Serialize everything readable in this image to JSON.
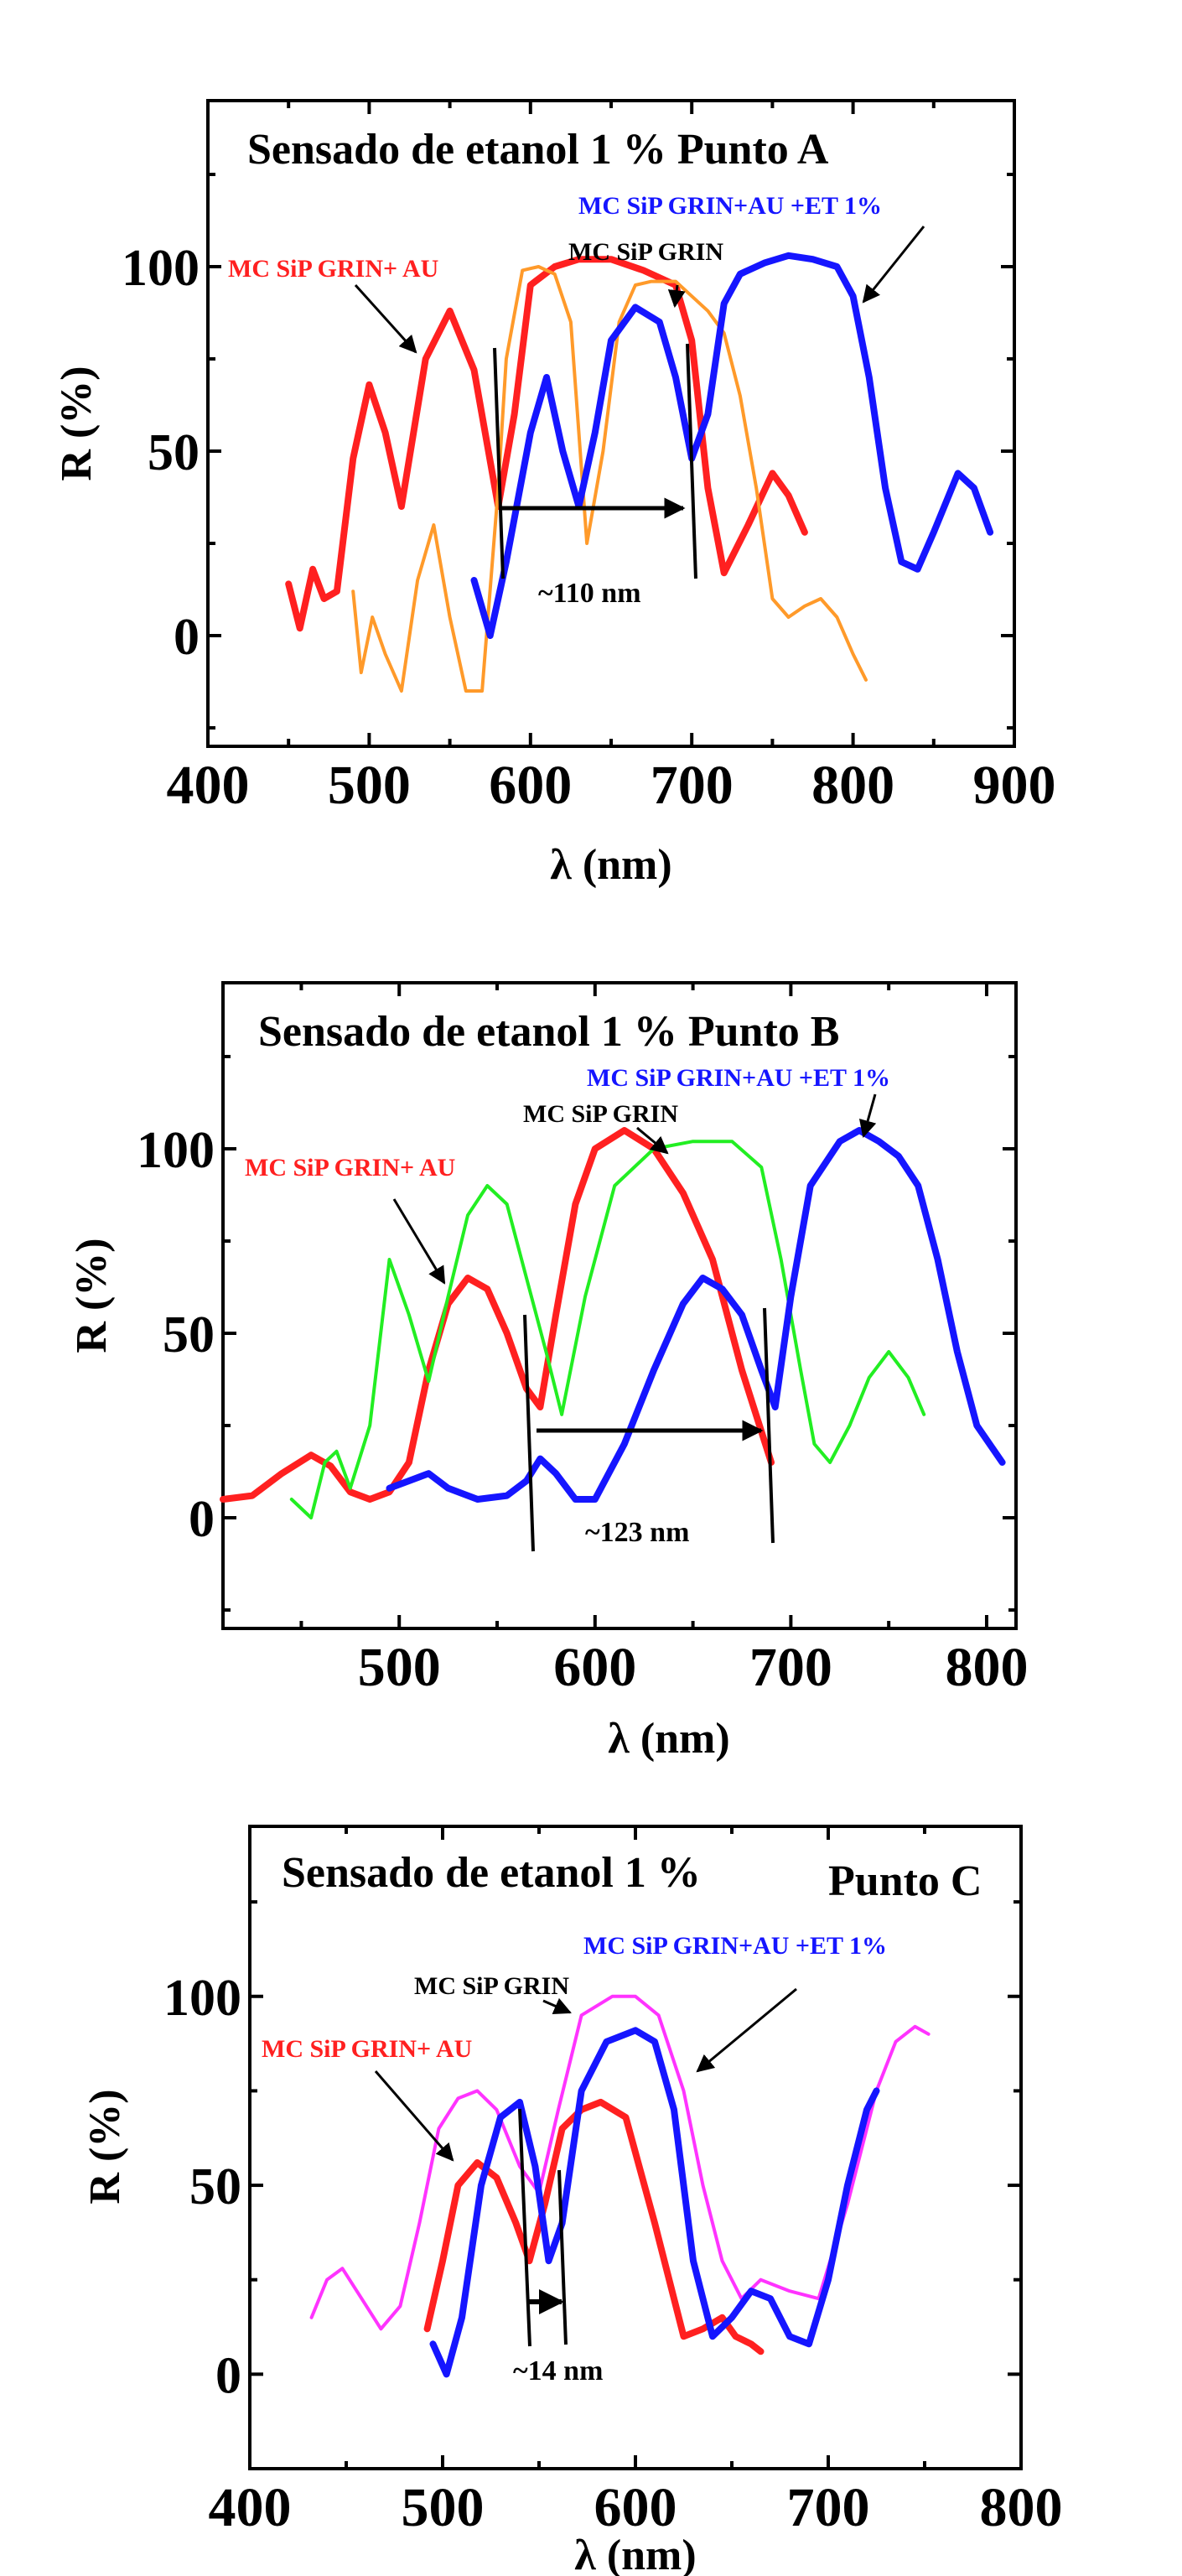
{
  "chart_data": [
    {
      "type": "line",
      "title": "Sensado de etanol 1 % Punto A",
      "xlabel": "λ (nm)",
      "ylabel": "R (%)",
      "xlim": [
        400,
        900
      ],
      "ylim": [
        -30,
        145
      ],
      "xticks": [
        400,
        500,
        600,
        700,
        800,
        900
      ],
      "yticks": [
        0,
        50,
        100
      ],
      "colors": {
        "red": "#ff2020",
        "orange": "#ff9a2a",
        "blue": "#1515ff",
        "black": "#000000"
      },
      "series": [
        {
          "name": "MC SiP GRIN+ AU",
          "color": "#ff2020",
          "x": [
            450,
            457,
            465,
            472,
            480,
            490,
            500,
            510,
            520,
            535,
            550,
            565,
            580,
            590,
            600,
            615,
            630,
            650,
            670,
            690,
            700,
            710,
            720,
            735,
            750,
            760,
            770
          ],
          "y": [
            14,
            2,
            18,
            10,
            12,
            48,
            68,
            55,
            35,
            75,
            88,
            72,
            35,
            60,
            95,
            100,
            102,
            102,
            99,
            95,
            80,
            40,
            17,
            30,
            44,
            38,
            28
          ]
        },
        {
          "name": "MC SiP GRIN",
          "color": "#ff9a2a",
          "x": [
            490,
            495,
            502,
            510,
            520,
            530,
            540,
            550,
            560,
            570,
            580,
            585,
            595,
            605,
            615,
            625,
            635,
            645,
            655,
            665,
            675,
            690,
            700,
            710,
            720,
            730,
            740,
            750,
            760,
            770,
            780,
            790,
            800,
            808
          ],
          "y": [
            12,
            -10,
            5,
            -5,
            -15,
            15,
            30,
            5,
            -15,
            -15,
            40,
            75,
            99,
            100,
            98,
            85,
            25,
            50,
            85,
            95,
            96,
            96,
            92,
            88,
            82,
            65,
            40,
            10,
            5,
            8,
            10,
            5,
            -5,
            -12
          ]
        },
        {
          "name": "MC SiP GRIN+ AU +ET 1%",
          "color": "#1515ff",
          "x": [
            565,
            575,
            585,
            600,
            610,
            620,
            630,
            640,
            650,
            665,
            680,
            690,
            700,
            710,
            720,
            730,
            745,
            760,
            775,
            790,
            800,
            810,
            820,
            830,
            840,
            850,
            865,
            875,
            885
          ],
          "y": [
            15,
            0,
            20,
            55,
            70,
            50,
            35,
            55,
            80,
            89,
            85,
            70,
            48,
            60,
            90,
            98,
            101,
            103,
            102,
            100,
            92,
            70,
            40,
            20,
            18,
            28,
            44,
            40,
            28
          ]
        }
      ],
      "annotations": [
        {
          "text": "MC SiP GRIN+ AU",
          "color": "#ff2020"
        },
        {
          "text": "MC SiP GRIN",
          "color": "#000000"
        },
        {
          "text": "MC SiP  GRIN+AU +ET  1%",
          "color": "#1515ff"
        },
        {
          "text": "~110 nm",
          "color": "#000000"
        }
      ]
    },
    {
      "type": "line",
      "title": "Sensado de etanol 1 %  Punto B",
      "xlabel": "λ (nm)",
      "ylabel": "R (%)",
      "xlim": [
        410,
        815
      ],
      "ylim": [
        -30,
        145
      ],
      "xticks": [
        500,
        600,
        700,
        800
      ],
      "yticks": [
        0,
        50,
        100
      ],
      "colors": {
        "red": "#ff2020",
        "green": "#22ee22",
        "blue": "#1515ff",
        "black": "#000000"
      },
      "series": [
        {
          "name": "MC SiP GRIN+ AU",
          "color": "#ff2020",
          "x": [
            410,
            425,
            440,
            455,
            465,
            475,
            485,
            495,
            505,
            515,
            525,
            535,
            545,
            555,
            565,
            572,
            580,
            590,
            600,
            615,
            630,
            645,
            660,
            675,
            690
          ],
          "y": [
            5,
            6,
            12,
            17,
            14,
            7,
            5,
            7,
            15,
            40,
            58,
            65,
            62,
            50,
            35,
            30,
            55,
            85,
            100,
            105,
            100,
            88,
            70,
            40,
            15
          ]
        },
        {
          "name": "MC SiP GRIN",
          "color": "#22ee22",
          "x": [
            445,
            455,
            462,
            468,
            475,
            485,
            495,
            505,
            515,
            525,
            535,
            545,
            555,
            565,
            575,
            583,
            595,
            610,
            630,
            650,
            670,
            685,
            695,
            705,
            712,
            720,
            730,
            740,
            750,
            760,
            768
          ],
          "y": [
            5,
            0,
            15,
            18,
            8,
            25,
            70,
            55,
            37,
            60,
            82,
            90,
            85,
            65,
            45,
            28,
            60,
            90,
            100,
            102,
            102,
            95,
            70,
            40,
            20,
            15,
            25,
            38,
            45,
            38,
            28
          ]
        },
        {
          "name": "MC SiP  GRIN+AU +ET  1%",
          "color": "#1515ff",
          "x": [
            495,
            505,
            515,
            525,
            540,
            555,
            565,
            572,
            580,
            590,
            600,
            615,
            630,
            645,
            655,
            665,
            675,
            685,
            692,
            700,
            710,
            725,
            735,
            745,
            755,
            765,
            775,
            785,
            795,
            808
          ],
          "y": [
            8,
            10,
            12,
            8,
            5,
            6,
            10,
            16,
            12,
            5,
            5,
            20,
            40,
            58,
            65,
            62,
            55,
            40,
            30,
            60,
            90,
            102,
            105,
            102,
            98,
            90,
            70,
            45,
            25,
            15
          ]
        }
      ],
      "annotations": [
        {
          "text": "MC SiP GRIN+ AU",
          "color": "#ff2020"
        },
        {
          "text": "MC SiP GRIN",
          "color": "#000000"
        },
        {
          "text": "MC SiP  GRIN+AU +ET  1%",
          "color": "#1515ff"
        },
        {
          "text": "~123 nm",
          "color": "#000000"
        }
      ]
    },
    {
      "type": "line",
      "title": "Sensado de etanol 1 %",
      "subtitle": "Punto C",
      "xlabel": "λ (nm)",
      "ylabel": "R (%)",
      "xlim": [
        400,
        800
      ],
      "ylim": [
        -25,
        145
      ],
      "xticks": [
        400,
        500,
        600,
        700,
        800
      ],
      "yticks": [
        0,
        50,
        100
      ],
      "colors": {
        "red": "#ff2020",
        "magenta": "#ff33ff",
        "blue": "#1515ff",
        "black": "#000000"
      },
      "series": [
        {
          "name": "MC SiP GRIN+ AU",
          "color": "#ff2020",
          "x": [
            492,
            500,
            508,
            518,
            528,
            538,
            545,
            553,
            562,
            572,
            582,
            595,
            610,
            625,
            635,
            645,
            652,
            660,
            665
          ],
          "y": [
            12,
            30,
            50,
            56,
            52,
            40,
            30,
            45,
            65,
            70,
            72,
            68,
            40,
            10,
            12,
            15,
            10,
            8,
            6
          ]
        },
        {
          "name": "MC SiP GRIN",
          "color": "#ff33ff",
          "x": [
            432,
            440,
            448,
            458,
            468,
            478,
            488,
            498,
            508,
            518,
            528,
            540,
            550,
            560,
            572,
            588,
            600,
            612,
            625,
            635,
            645,
            655,
            665,
            680,
            695,
            710,
            725,
            735,
            745,
            752
          ],
          "y": [
            15,
            25,
            28,
            20,
            12,
            18,
            40,
            65,
            73,
            75,
            70,
            55,
            48,
            70,
            95,
            100,
            100,
            95,
            75,
            50,
            30,
            20,
            25,
            22,
            20,
            45,
            75,
            88,
            92,
            90
          ]
        },
        {
          "name": "MC SiP  GRIN+AU +ET  1%",
          "color": "#1515ff",
          "x": [
            495,
            502,
            510,
            520,
            530,
            540,
            548,
            555,
            562,
            572,
            585,
            600,
            610,
            620,
            630,
            640,
            650,
            660,
            670,
            680,
            690,
            700,
            710,
            720,
            725
          ],
          "y": [
            8,
            0,
            15,
            50,
            68,
            72,
            55,
            30,
            40,
            75,
            88,
            91,
            88,
            70,
            30,
            10,
            15,
            22,
            20,
            10,
            8,
            25,
            50,
            70,
            75
          ]
        }
      ],
      "annotations": [
        {
          "text": "MC SiP GRIN+ AU",
          "color": "#ff2020"
        },
        {
          "text": "MC SiP GRIN",
          "color": "#000000"
        },
        {
          "text": "MC SiP  GRIN+AU +ET  1%",
          "color": "#1515ff"
        },
        {
          "text": "~14 nm",
          "color": "#000000"
        }
      ]
    }
  ]
}
